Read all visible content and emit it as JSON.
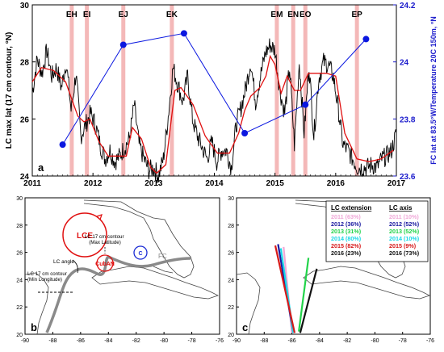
{
  "chart_data": [
    {
      "panel": "a",
      "type": "line",
      "ylabel": "LC max lat (17 cm contour, °N)",
      "y2label": "FC lat at 83.5°W/Temperature 20C 150m, °N",
      "xlim": [
        2011,
        2017
      ],
      "ylim": [
        24,
        30
      ],
      "y2lim": [
        23.6,
        24.2
      ],
      "x_ticks": [
        "2011",
        "2012",
        "2013",
        "2014",
        "2015",
        "2016",
        "2017"
      ],
      "y_ticks": [
        "24",
        "26",
        "28",
        "30"
      ],
      "y2_ticks": [
        "23.6",
        "23.8",
        "24",
        "24.2"
      ],
      "events": [
        {
          "name": "EH",
          "x": 2011.65
        },
        {
          "name": "EI",
          "x": 2011.9
        },
        {
          "name": "EJ",
          "x": 2012.5
        },
        {
          "name": "EK",
          "x": 2013.3
        },
        {
          "name": "EM",
          "x": 2015.03
        },
        {
          "name": "EN",
          "x": 2015.3
        },
        {
          "name": "EO",
          "x": 2015.5
        },
        {
          "name": "EP",
          "x": 2016.35
        }
      ],
      "series": [
        {
          "color": "#0b18e0",
          "axis": "right",
          "x": [
            2011.5,
            2012.5,
            2013.5,
            2014.5,
            2015.5,
            2016.5
          ],
          "y": [
            23.71,
            24.06,
            24.1,
            23.75,
            23.85,
            24.08
          ]
        },
        {
          "color": "#e01010",
          "axis": "left",
          "x": [
            2011.0,
            2011.15,
            2011.35,
            2011.55,
            2011.75,
            2011.85,
            2011.95,
            2012.1,
            2012.25,
            2012.45,
            2012.55,
            2012.65,
            2012.8,
            2012.95,
            2013.05,
            2013.2,
            2013.35,
            2013.45,
            2013.65,
            2013.85,
            2014.05,
            2014.25,
            2014.4,
            2014.5,
            2014.6,
            2014.75,
            2014.85,
            2014.92,
            2015.0,
            2015.1,
            2015.2,
            2015.32,
            2015.42,
            2015.55,
            2015.7,
            2015.85,
            2016.0,
            2016.15,
            2016.35,
            2016.55,
            2016.75,
            2016.95
          ],
          "y": [
            27.3,
            27.8,
            27.7,
            27.3,
            26.1,
            25.9,
            26.0,
            25.2,
            24.7,
            24.7,
            24.7,
            25.7,
            25.3,
            24.3,
            24.1,
            24.4,
            27.0,
            27.1,
            26.5,
            25.4,
            24.8,
            24.8,
            25.5,
            26.3,
            26.8,
            27.1,
            27.5,
            28.2,
            27.9,
            26.9,
            27.5,
            27.0,
            27.0,
            27.6,
            27.6,
            27.6,
            27.5,
            25.5,
            24.6,
            24.5,
            24.6,
            24.9
          ]
        },
        {
          "color": "#000000",
          "axis": "left",
          "x": [
            2011.0,
            2011.08,
            2011.16,
            2011.24,
            2011.32,
            2011.4,
            2011.48,
            2011.56,
            2011.64,
            2011.72,
            2011.8,
            2011.88,
            2011.96,
            2012.04,
            2012.12,
            2012.2,
            2012.28,
            2012.36,
            2012.44,
            2012.52,
            2012.6,
            2012.68,
            2012.76,
            2012.84,
            2012.92,
            2013.0,
            2013.08,
            2013.16,
            2013.24,
            2013.32,
            2013.4,
            2013.48,
            2013.56,
            2013.64,
            2013.72,
            2013.8,
            2013.88,
            2013.96,
            2014.04,
            2014.12,
            2014.2,
            2014.28,
            2014.36,
            2014.44,
            2014.52,
            2014.6,
            2014.68,
            2014.76,
            2014.84,
            2014.92,
            2015.0,
            2015.08,
            2015.16,
            2015.24,
            2015.32,
            2015.4,
            2015.48,
            2015.56,
            2015.64,
            2015.72,
            2015.8,
            2015.88,
            2015.96,
            2016.04,
            2016.12,
            2016.2,
            2016.28,
            2016.36,
            2016.44,
            2016.52,
            2016.6,
            2016.68,
            2016.76,
            2016.84,
            2016.92,
            2017.0
          ],
          "y": [
            26.9,
            28.1,
            27.6,
            28.4,
            27.5,
            27.8,
            27.1,
            28.0,
            26.3,
            27.6,
            25.4,
            25.8,
            26.2,
            25.8,
            25.1,
            24.6,
            24.9,
            24.5,
            24.7,
            25.0,
            25.3,
            26.5,
            25.1,
            24.6,
            24.2,
            24.3,
            24.0,
            24.6,
            26.1,
            27.8,
            27.2,
            26.6,
            27.5,
            26.0,
            25.4,
            25.0,
            24.6,
            25.2,
            24.5,
            24.9,
            24.9,
            24.3,
            25.8,
            26.4,
            27.1,
            28.0,
            26.6,
            27.5,
            28.3,
            28.6,
            28.4,
            27.0,
            26.2,
            27.8,
            25.1,
            28.0,
            25.5,
            27.9,
            25.4,
            27.4,
            28.0,
            27.9,
            27.5,
            26.4,
            25.1,
            24.9,
            24.6,
            24.3,
            24.3,
            24.3,
            24.4,
            24.3,
            24.6,
            24.7,
            24.9,
            25.5
          ]
        }
      ]
    },
    {
      "panel": "b",
      "type": "map",
      "xlim": [
        -90,
        -76
      ],
      "ylim": [
        20,
        30
      ],
      "x_ticks": [
        "-90",
        "-88",
        "-86",
        "-84",
        "-82",
        "-80",
        "-78",
        "-76"
      ],
      "y_ticks": [
        "20",
        "22",
        "24",
        "26",
        "28",
        "30"
      ],
      "labels": {
        "lce": "LCE",
        "max_lat": "LC 17 cm contour\n(Max Latitude)",
        "lc_angle": "LC angle",
        "min_lon": "LC 17 cm contour\n(Min Longitude)",
        "cuban": "CubAN",
        "c": "C",
        "fc": "FC"
      },
      "colors": {
        "eddy": "#e01010",
        "cyclone": "#1a2bd4",
        "current": "#8a8a8a"
      }
    },
    {
      "panel": "c",
      "type": "map",
      "xlim": [
        -90,
        -76
      ],
      "ylim": [
        20,
        30
      ],
      "x_ticks": [
        "-90",
        "-88",
        "-86",
        "-84",
        "-82",
        "-80",
        "-78",
        "-76"
      ],
      "y_ticks": [
        "20",
        "22",
        "24",
        "26",
        "28",
        "30"
      ],
      "legend": {
        "head_extension": "LC extension",
        "head_axis": "LC axis",
        "rows": [
          {
            "ext": "2011 (63%)",
            "axis": "2011 (10%)",
            "color": "#f0a8d8"
          },
          {
            "ext": "2012 (36%)",
            "axis": "2012 (52%)",
            "color": "#1a1aa0"
          },
          {
            "ext": "2013 (31%)",
            "axis": "2013 (52%)",
            "color": "#22d34a"
          },
          {
            "ext": "2014 (80%)",
            "axis": "2014 (10%)",
            "color": "#1ad8e6"
          },
          {
            "ext": "2015 (82%)",
            "axis": "2015 (9%)",
            "color": "#d61818"
          },
          {
            "ext": "2016 (23%)",
            "axis": "2016 (73%)",
            "color": "#111111"
          }
        ]
      },
      "axis_lines": [
        {
          "year": "2011",
          "color": "#f0a8d8",
          "from": [
            -86.0,
            20.1
          ],
          "to": [
            -86.6,
            26.4
          ]
        },
        {
          "year": "2012",
          "color": "#1a1aa0",
          "from": [
            -85.9,
            20.1
          ],
          "to": [
            -87.0,
            26.6
          ]
        },
        {
          "year": "2013",
          "color": "#22d34a",
          "from": [
            -85.5,
            20.2
          ],
          "to": [
            -84.8,
            25.6
          ]
        },
        {
          "year": "2014",
          "color": "#1ad8e6",
          "from": [
            -85.9,
            20.1
          ],
          "to": [
            -86.8,
            26.3
          ]
        },
        {
          "year": "2015",
          "color": "#d61818",
          "from": [
            -85.8,
            20.1
          ],
          "to": [
            -87.2,
            26.5
          ]
        },
        {
          "year": "2016",
          "color": "#111111",
          "from": [
            -85.4,
            20.1
          ],
          "to": [
            -84.2,
            24.8
          ]
        }
      ]
    }
  ]
}
